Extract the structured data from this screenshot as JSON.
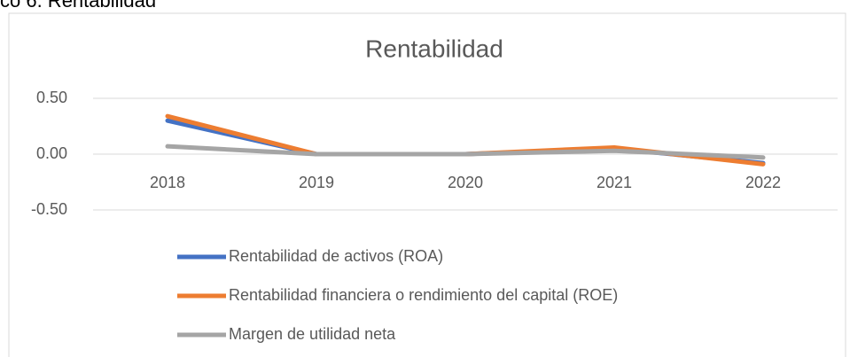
{
  "caption": "co 6. Rentabilidad",
  "chart_data": {
    "type": "line",
    "title": "Rentabilidad",
    "categories": [
      "2018",
      "2019",
      "2020",
      "2021",
      "2022"
    ],
    "series": [
      {
        "name": "Rentabilidad de activos (ROA)",
        "color": "#4472c4",
        "values": [
          0.3,
          0.0,
          0.0,
          0.05,
          -0.08
        ]
      },
      {
        "name": "Rentabilidad financiera o rendimiento del capital (ROE)",
        "color": "#ed7d31",
        "values": [
          0.34,
          0.0,
          0.0,
          0.06,
          -0.09
        ]
      },
      {
        "name": "Margen de utilidad neta",
        "color": "#a5a5a5",
        "values": [
          0.07,
          0.0,
          0.0,
          0.03,
          -0.03
        ]
      }
    ],
    "ylim": [
      -0.5,
      0.5
    ],
    "yticks": [
      {
        "value": 0.5,
        "label": "0.50"
      },
      {
        "value": 0,
        "label": "0.00"
      },
      {
        "value": -0.5,
        "label": "-0.50"
      }
    ],
    "grid": true
  }
}
